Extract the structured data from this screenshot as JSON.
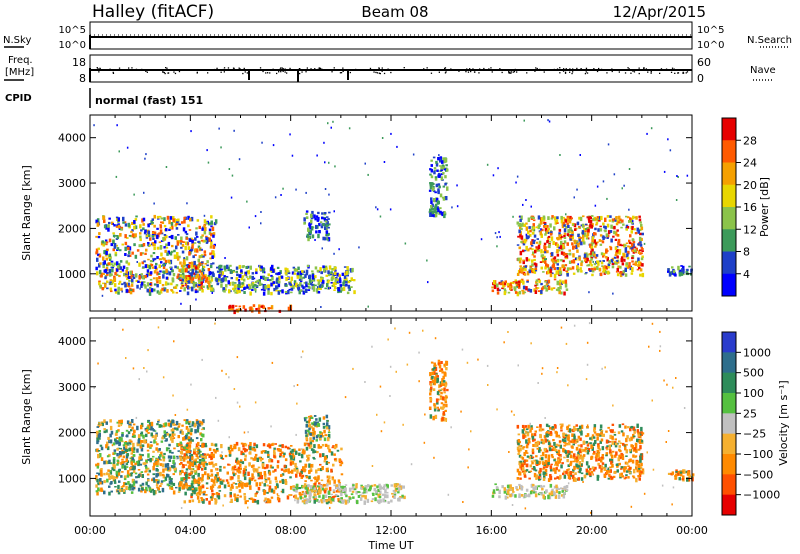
{
  "header": {
    "station": "Halley (fitACF)",
    "beam": "Beam 08",
    "date": "12/Apr/2015"
  },
  "strip_panels": {
    "nsky_label": "N.Sky",
    "nsearch_label": "N.Search",
    "freq_label_line1": "Freq.",
    "freq_label_line2": "[MHz]",
    "nave_label": "Nave",
    "cpid_label": "CPID",
    "cpid_value": "normal (fast) 151",
    "noise_left_ticks": [
      "10^5",
      "10^0"
    ],
    "noise_right_ticks": [
      "10^5",
      "10^0"
    ],
    "freq_left_ticks": [
      "18",
      "8"
    ],
    "freq_right_ticks": [
      "60",
      "0"
    ]
  },
  "x_axis": {
    "label": "Time UT",
    "ticks": [
      "00:00",
      "04:00",
      "08:00",
      "12:00",
      "16:00",
      "20:00",
      "00:00"
    ]
  },
  "power_colorbar": {
    "label": "Power [dB]",
    "ticks": [
      "28",
      "24",
      "20",
      "16",
      "12",
      "8",
      "4"
    ],
    "colors": [
      "#e60000",
      "#ff5a00",
      "#f5a000",
      "#e8d600",
      "#8bc34a",
      "#3c9a5a",
      "#1e40c8",
      "#0000ff"
    ]
  },
  "velocity_colorbar": {
    "label": "Velocity [m s⁻¹]",
    "ticks": [
      "1000",
      "500",
      "100",
      "25",
      "−25",
      "−100",
      "−500",
      "−1000"
    ],
    "colors": [
      "#2a3ccc",
      "#2e6e8c",
      "#2e8c5a",
      "#55c040",
      "#c0c0c0",
      "#f5b030",
      "#ff8a00",
      "#ff5000",
      "#e60000"
    ]
  },
  "chart_data": [
    {
      "type": "heatmap",
      "title": "Power",
      "ylabel": "Slant Range [km]",
      "xlabel": "Time UT",
      "y_ticks": [
        "1000",
        "2000",
        "3000",
        "4000"
      ],
      "xlim_hours": [
        0,
        24
      ],
      "ylim_km": [
        180,
        4500
      ],
      "colorbar_label": "Power [dB]",
      "regions": [
        {
          "t0": 0.2,
          "t1": 5.0,
          "r0": 600,
          "r1": 2300,
          "level": "mixed-high"
        },
        {
          "t0": 3.5,
          "t1": 4.5,
          "r0": 700,
          "r1": 1300,
          "level": "high"
        },
        {
          "t0": 5.0,
          "t1": 10.5,
          "r0": 600,
          "r1": 1200,
          "level": "mixed"
        },
        {
          "t0": 5.5,
          "t1": 8.0,
          "r0": 200,
          "r1": 330,
          "level": "very-high"
        },
        {
          "t0": 8.5,
          "t1": 9.5,
          "r0": 1800,
          "r1": 2400,
          "level": "medium"
        },
        {
          "t0": 13.5,
          "t1": 14.2,
          "r0": 2300,
          "r1": 3600,
          "level": "medium"
        },
        {
          "t0": 16.0,
          "t1": 19.0,
          "r0": 600,
          "r1": 900,
          "level": "high"
        },
        {
          "t0": 17.0,
          "t1": 22.0,
          "r0": 1000,
          "r1": 2300,
          "level": "high"
        },
        {
          "t0": 23.0,
          "t1": 24.0,
          "r0": 1000,
          "r1": 1200,
          "level": "medium"
        }
      ]
    },
    {
      "type": "heatmap",
      "title": "Velocity",
      "ylabel": "Slant Range [km]",
      "xlabel": "Time UT",
      "y_ticks": [
        "1000",
        "2000",
        "3000",
        "4000"
      ],
      "xlim_hours": [
        0,
        24
      ],
      "ylim_km": [
        180,
        4500
      ],
      "colorbar_label": "Velocity [m s⁻¹]",
      "regions": [
        {
          "t0": 0.2,
          "t1": 4.5,
          "r0": 700,
          "r1": 2300,
          "level": "mixed-positive"
        },
        {
          "t0": 3.5,
          "t1": 10.0,
          "r0": 500,
          "r1": 1800,
          "level": "negative"
        },
        {
          "t0": 8.0,
          "t1": 12.5,
          "r0": 500,
          "r1": 900,
          "level": "near-zero"
        },
        {
          "t0": 8.5,
          "t1": 9.5,
          "r0": 1800,
          "r1": 2400,
          "level": "mixed-positive"
        },
        {
          "t0": 13.5,
          "t1": 14.2,
          "r0": 2300,
          "r1": 3600,
          "level": "negative"
        },
        {
          "t0": 16.0,
          "t1": 19.0,
          "r0": 600,
          "r1": 900,
          "level": "near-zero"
        },
        {
          "t0": 17.0,
          "t1": 22.0,
          "r0": 1000,
          "r1": 2200,
          "level": "negative"
        },
        {
          "t0": 23.0,
          "t1": 24.0,
          "r0": 1000,
          "r1": 1200,
          "level": "negative"
        }
      ]
    }
  ]
}
